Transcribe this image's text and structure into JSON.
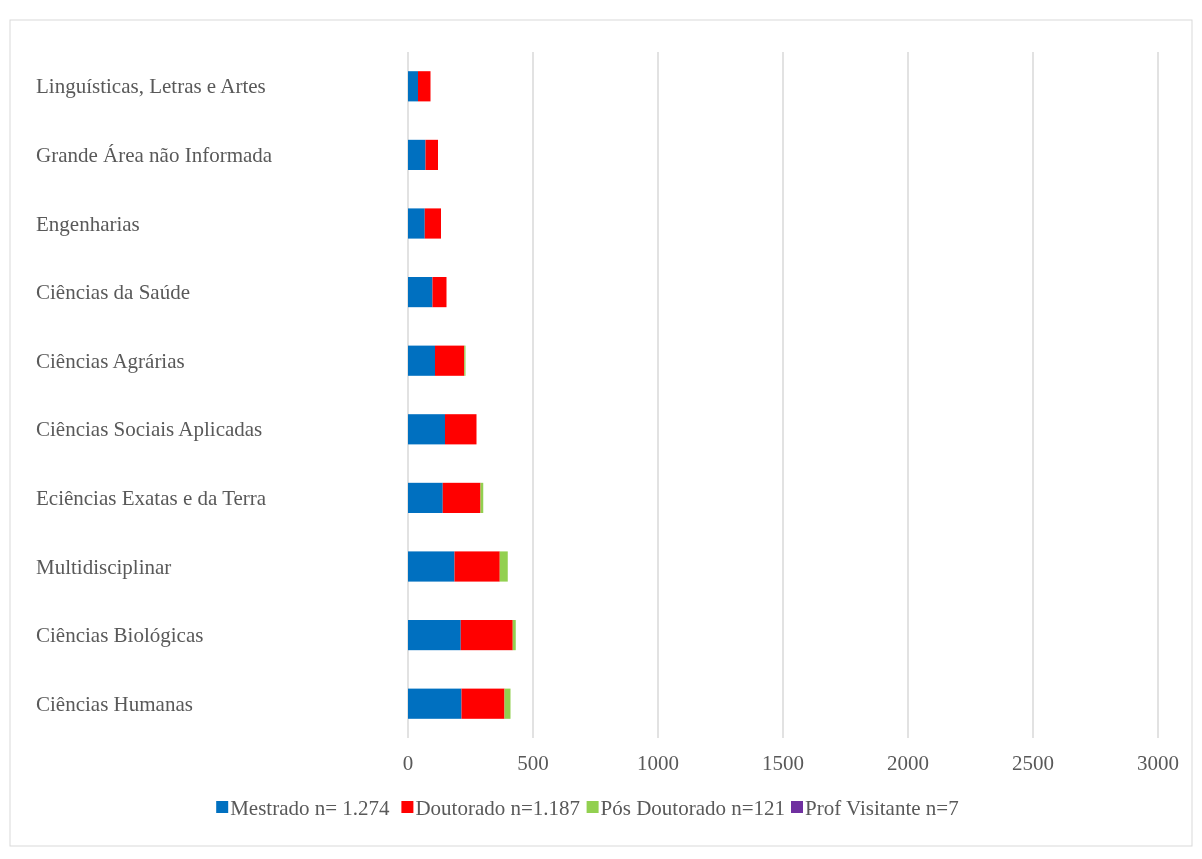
{
  "chart_data": {
    "type": "bar",
    "orientation": "horizontal",
    "stacked": true,
    "categories": [
      "Linguísticas, Letras e Artes",
      "Grande Área não Informada",
      "Engenharias",
      "Ciências da Saúde",
      "Ciências Agrárias",
      "Ciências Sociais Aplicadas",
      "Eciências Exatas e da Terra",
      "Multidisciplinar",
      "Ciências Biológicas",
      "Ciências Humanas"
    ],
    "series": [
      {
        "name": "Mestrado n= 1.274",
        "color": "#0070c0",
        "values": [
          40,
          70,
          67,
          98,
          108,
          148,
          139,
          186,
          211,
          214
        ]
      },
      {
        "name": "Doutorado n=1.187",
        "color": "#ff0000",
        "values": [
          50,
          50,
          65,
          56,
          117,
          126,
          151,
          181,
          208,
          172
        ]
      },
      {
        "name": "Pós Doutorado n=121",
        "color": "#92d050",
        "values": [
          null,
          null,
          null,
          null,
          5,
          null,
          11,
          32,
          12,
          24
        ]
      },
      {
        "name": "Prof Visitante n=7",
        "color": "#7030a0",
        "values": [
          null,
          null,
          null,
          null,
          null,
          null,
          null,
          null,
          null,
          null
        ]
      }
    ],
    "xlim": [
      0,
      3000
    ],
    "xticks": [
      0,
      500,
      1000,
      1500,
      2000,
      2500,
      3000
    ],
    "grid": "x",
    "legend": "bottom"
  }
}
